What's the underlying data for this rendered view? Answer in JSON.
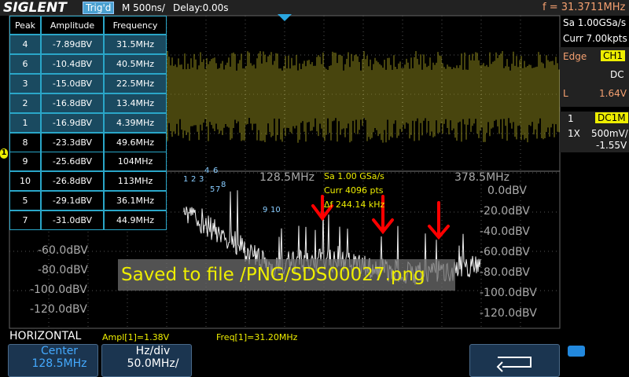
{
  "header": {
    "brand": "SIGLENT",
    "trigger": "Trig'd",
    "timebase": "M 500ns/",
    "delay": "Delay:0.00s",
    "frequency": "f = 31.3711MHz"
  },
  "peak_table": {
    "columns": [
      "Peak",
      "Amplitude",
      "Frequency"
    ],
    "rows": [
      [
        "4",
        "-7.89dBV",
        "31.5MHz"
      ],
      [
        "6",
        "-10.4dBV",
        "40.5MHz"
      ],
      [
        "3",
        "-15.0dBV",
        "22.5MHz"
      ],
      [
        "2",
        "-16.8dBV",
        "13.4MHz"
      ],
      [
        "1",
        "-16.9dBV",
        "4.39MHz"
      ],
      [
        "8",
        "-23.3dBV",
        "49.6MHz"
      ],
      [
        "9",
        "-25.6dBV",
        "104MHz"
      ],
      [
        "10",
        "-26.8dBV",
        "113MHz"
      ],
      [
        "5",
        "-29.1dBV",
        "36.1MHz"
      ],
      [
        "7",
        "-31.0dBV",
        "44.9MHz"
      ]
    ]
  },
  "right_panel": {
    "sample_rate": "Sa 1.00GSa/s",
    "memory": "Curr 7.00kpts",
    "trigger_type": "Edge",
    "trigger_source": "CH1",
    "coupling": "DC",
    "level_label": "L",
    "level": "1.64V",
    "channel": "1",
    "channel_coupling": "DC1M",
    "probe": "1X",
    "scale": "500mV/",
    "offset": "-1.55V"
  },
  "fft": {
    "freq_labels": [
      "128.5MHz",
      "378.5MHz"
    ],
    "left_db_labels": [
      "-60.0dBV",
      "-80.0dBV",
      "-100.0dBV",
      "-120.0dBV"
    ],
    "right_db_labels": [
      "0.0dBV",
      "-20.0dBV",
      "-40.0dBV",
      "-60.0dBV",
      "-80.0dBV",
      "-100.0dBV",
      "-120.0dBV"
    ],
    "info": [
      "Sa 1.00 GSa/s",
      "Curr 4096 pts",
      "Δf 244.14 kHz"
    ],
    "peak_markers": [
      "1",
      "2",
      "3",
      "4",
      "5",
      "6",
      "7",
      "8",
      "9",
      "10"
    ]
  },
  "channel_marker": "1",
  "message": "Saved to file /PNG/SDS00027.png",
  "measurements": [
    "Ampl[1]=1.38V",
    "Freq[1]=31.20MHz"
  ],
  "bottom": {
    "menu": "HORIZONTAL",
    "center_label": "Center",
    "center_value": "128.5MHz",
    "hzdiv_label": "Hz/div",
    "hzdiv_value": "50.0MHz/"
  }
}
